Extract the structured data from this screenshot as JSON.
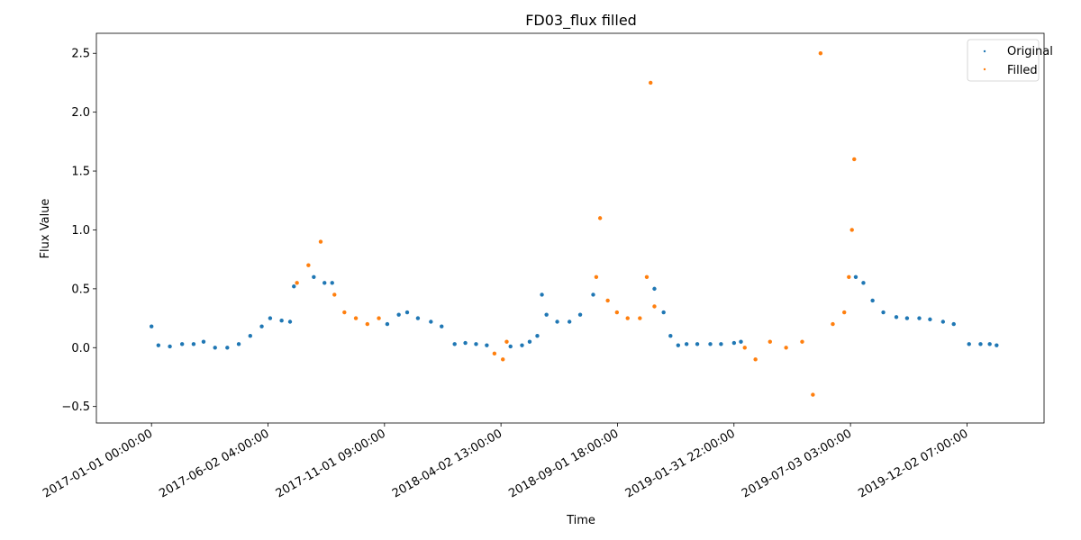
{
  "chart_data": {
    "type": "scatter",
    "title": "FD03_flux filled",
    "xlabel": "Time",
    "ylabel": "Flux Value",
    "x_is_datetime": true,
    "xlim": [
      "2016-10-21 00:00:00",
      "2020-03-12 00:00:00"
    ],
    "ylim": [
      -0.64,
      2.67
    ],
    "x_ticks": [
      "2017-01-01 00:00:00",
      "2017-06-02 04:00:00",
      "2017-11-01 09:00:00",
      "2018-04-02 13:00:00",
      "2018-09-01 18:00:00",
      "2019-01-31 22:00:00",
      "2019-07-03 03:00:00",
      "2019-12-02 07:00:00"
    ],
    "y_ticks": [
      -0.5,
      0.0,
      0.5,
      1.0,
      1.5,
      2.0,
      2.5
    ],
    "y_tick_labels": [
      "−0.5",
      "0.0",
      "0.5",
      "1.0",
      "1.5",
      "2.0",
      "2.5"
    ],
    "grid": false,
    "legend": {
      "position": "top-right",
      "entries": [
        "Original",
        "Filled"
      ]
    },
    "series": [
      {
        "name": "Original",
        "color": "#1f77b4",
        "marker": "dot",
        "points": [
          [
            "2017-01-01",
            0.18
          ],
          [
            "2017-01-10",
            0.02
          ],
          [
            "2017-01-25",
            0.01
          ],
          [
            "2017-02-10",
            0.03
          ],
          [
            "2017-02-25",
            0.03
          ],
          [
            "2017-03-10",
            0.05
          ],
          [
            "2017-03-25",
            0.0
          ],
          [
            "2017-04-10",
            0.0
          ],
          [
            "2017-04-25",
            0.03
          ],
          [
            "2017-05-10",
            0.1
          ],
          [
            "2017-05-25",
            0.18
          ],
          [
            "2017-06-05",
            0.25
          ],
          [
            "2017-06-20",
            0.23
          ],
          [
            "2017-07-01",
            0.22
          ],
          [
            "2017-07-06",
            0.52
          ],
          [
            "2017-08-01",
            0.6
          ],
          [
            "2017-08-15",
            0.55
          ],
          [
            "2017-08-25",
            0.55
          ],
          [
            "2017-11-05",
            0.2
          ],
          [
            "2017-11-20",
            0.28
          ],
          [
            "2017-12-01",
            0.3
          ],
          [
            "2017-12-15",
            0.25
          ],
          [
            "2018-01-01",
            0.22
          ],
          [
            "2018-01-15",
            0.18
          ],
          [
            "2018-02-01",
            0.03
          ],
          [
            "2018-02-15",
            0.04
          ],
          [
            "2018-03-01",
            0.03
          ],
          [
            "2018-03-15",
            0.02
          ],
          [
            "2018-04-15",
            0.01
          ],
          [
            "2018-04-30",
            0.02
          ],
          [
            "2018-05-10",
            0.05
          ],
          [
            "2018-05-20",
            0.1
          ],
          [
            "2018-05-26",
            0.45
          ],
          [
            "2018-06-01",
            0.28
          ],
          [
            "2018-06-15",
            0.22
          ],
          [
            "2018-07-01",
            0.22
          ],
          [
            "2018-07-15",
            0.28
          ],
          [
            "2018-08-01",
            0.45
          ],
          [
            "2018-10-20",
            0.5
          ],
          [
            "2018-11-01",
            0.3
          ],
          [
            "2018-11-10",
            0.1
          ],
          [
            "2018-11-20",
            0.02
          ],
          [
            "2018-12-01",
            0.03
          ],
          [
            "2018-12-15",
            0.03
          ],
          [
            "2019-01-01",
            0.03
          ],
          [
            "2019-01-15",
            0.03
          ],
          [
            "2019-02-01",
            0.04
          ],
          [
            "2019-02-10",
            0.05
          ],
          [
            "2019-07-10",
            0.6
          ],
          [
            "2019-07-20",
            0.55
          ],
          [
            "2019-08-01",
            0.4
          ],
          [
            "2019-08-15",
            0.3
          ],
          [
            "2019-09-01",
            0.26
          ],
          [
            "2019-09-15",
            0.25
          ],
          [
            "2019-10-01",
            0.25
          ],
          [
            "2019-10-15",
            0.24
          ],
          [
            "2019-11-01",
            0.22
          ],
          [
            "2019-11-15",
            0.2
          ],
          [
            "2019-12-05",
            0.03
          ],
          [
            "2019-12-20",
            0.03
          ],
          [
            "2020-01-01",
            0.03
          ],
          [
            "2020-01-10",
            0.02
          ]
        ]
      },
      {
        "name": "Filled",
        "color": "#ff7f0e",
        "marker": "dot",
        "points": [
          [
            "2017-07-10",
            0.55
          ],
          [
            "2017-07-25",
            0.7
          ],
          [
            "2017-08-10",
            0.9
          ],
          [
            "2017-08-28",
            0.45
          ],
          [
            "2017-09-10",
            0.3
          ],
          [
            "2017-09-25",
            0.25
          ],
          [
            "2017-10-10",
            0.2
          ],
          [
            "2017-10-25",
            0.25
          ],
          [
            "2018-03-25",
            -0.05
          ],
          [
            "2018-04-05",
            -0.1
          ],
          [
            "2018-04-10",
            0.05
          ],
          [
            "2018-08-05",
            0.6
          ],
          [
            "2018-08-10",
            1.1
          ],
          [
            "2018-08-20",
            0.4
          ],
          [
            "2018-09-01",
            0.3
          ],
          [
            "2018-09-15",
            0.25
          ],
          [
            "2018-10-01",
            0.25
          ],
          [
            "2018-10-10",
            0.6
          ],
          [
            "2018-10-15",
            2.25
          ],
          [
            "2018-10-20",
            0.35
          ],
          [
            "2019-02-15",
            0.0
          ],
          [
            "2019-03-01",
            -0.1
          ],
          [
            "2019-03-20",
            0.05
          ],
          [
            "2019-04-10",
            0.0
          ],
          [
            "2019-05-01",
            0.05
          ],
          [
            "2019-05-15",
            -0.4
          ],
          [
            "2019-05-25",
            2.5
          ],
          [
            "2019-06-10",
            0.2
          ],
          [
            "2019-06-25",
            0.3
          ],
          [
            "2019-07-01",
            0.6
          ],
          [
            "2019-07-05",
            1.0
          ],
          [
            "2019-07-08",
            1.6
          ]
        ]
      }
    ]
  }
}
